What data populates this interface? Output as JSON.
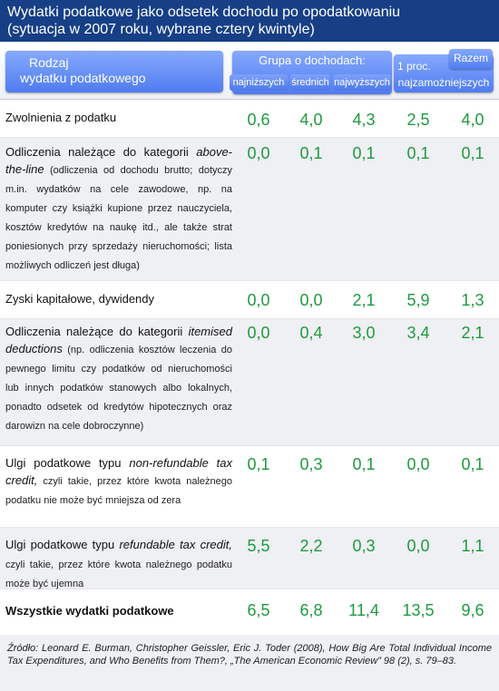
{
  "title": {
    "line1": "Wydatki podatkowe jako odsetek dochodu po opodatkowaniu",
    "line2": "(sytuacja w 2007 roku, wybrane cztery kwintyle)"
  },
  "header": {
    "rodzaj_line1": "Rodzaj",
    "rodzaj_line2": "wydatku podatkowego",
    "grupa": "Grupa o dochodach:",
    "col_najnizszych": "najniższych",
    "col_srednich": "średnich",
    "col_najwyzszych": "najwyższych",
    "col_1proc_top": "1 proc.",
    "col_1proc_bottom": "najzamożniejszych",
    "col_razem": "Razem"
  },
  "rows": [
    {
      "label_main": "Zwolnienia z podatku",
      "values": [
        "0,6",
        "4,0",
        "4,3",
        "2,5",
        "4,0"
      ]
    },
    {
      "label_pre": "Odliczenia należące do kategorii ",
      "label_italic": "above-the-line",
      "label_note": " (odliczenia od dochodu brutto; dotyczy m.in. wydatków na cele zawodowe, np. na komputer czy książki kupione przez nauczyciela, kosztów kredytów na naukę itd., ale także strat poniesionych przy sprzedaży nieruchomości; lista możliwych odliczeń jest długa)",
      "values": [
        "0,0",
        "0,1",
        "0,1",
        "0,1",
        "0,1"
      ]
    },
    {
      "label_main": "Zyski kapitałowe, dywidendy",
      "values": [
        "0,0",
        "0,0",
        "2,1",
        "5,9",
        "1,3"
      ]
    },
    {
      "label_pre": "Odliczenia należące do kategorii ",
      "label_italic": "itemised deductions",
      "label_note": " (np. odliczenia kosztów leczenia do pewnego limitu czy podatków od nieruchomości lub innych podatków stanowych albo lokalnych, ponadto odsetek od kredytów hipotecznych oraz darowizn na cele dobroczynne)",
      "values": [
        "0,0",
        "0,4",
        "3,0",
        "3,4",
        "2,1"
      ]
    },
    {
      "label_pre": "Ulgi podatkowe typu ",
      "label_italic": "non-refundable tax credit,",
      "label_note": " czyli takie, przez które kwota należnego podatku nie może być mniejsza od zera",
      "values": [
        "0,1",
        "0,3",
        "0,1",
        "0,0",
        "0,1"
      ]
    },
    {
      "label_pre": "Ulgi podatkowe typu ",
      "label_italic": "refundable tax credit,",
      "label_note": " czyli takie, przez które kwota należnego podatku może być ujemna",
      "values": [
        "5,5",
        "2,2",
        "0,3",
        "0,0",
        "1,1"
      ]
    },
    {
      "label_bold": "Wszystkie wydatki podatkowe",
      "values": [
        "6,5",
        "6,8",
        "11,4",
        "13,5",
        "9,6"
      ]
    }
  ],
  "footer": "Źródło: Leonard E. Burman, Christopher Geissler, Eric J. Toder (2008), How Big Are Total Individual Income Tax Expenditures, and Who Benefits from Them?, „The American Economic Review” 98 (2), s. 79–83.",
  "colors": {
    "title_bg": "#163f86",
    "pill": "#5b86f3",
    "value_green": "#1f9a3f",
    "shade": "#eef0f3"
  }
}
